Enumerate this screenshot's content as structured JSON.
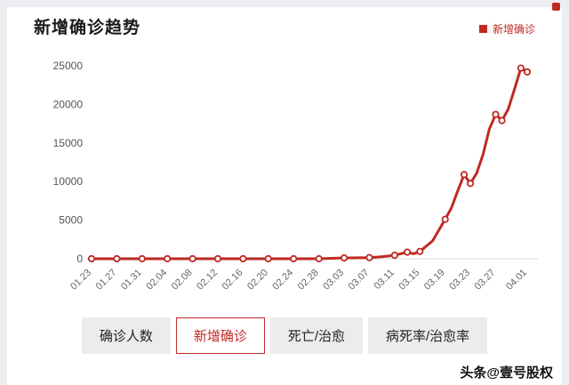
{
  "theme": {
    "accent": "#bf2a23"
  },
  "page": {
    "title": "新增确诊趋势"
  },
  "legend": {
    "label": "新增确诊"
  },
  "tabs": [
    {
      "label": "确诊人数",
      "active": false
    },
    {
      "label": "新增确诊",
      "active": true
    },
    {
      "label": "死亡/治愈",
      "active": false
    },
    {
      "label": "病死率/治愈率",
      "active": false
    }
  ],
  "watermark": "头条@壹号股权",
  "chart_data": {
    "type": "line",
    "title": "新增确诊趋势",
    "series_name": "新增确诊",
    "color": "#bf2a23",
    "grid": false,
    "legend_position": "top-right",
    "ylim": [
      0,
      25000
    ],
    "y_ticks": [
      0,
      5000,
      10000,
      15000,
      20000,
      25000
    ],
    "x_ticks": [
      {
        "label": "01.23",
        "d": 0
      },
      {
        "label": "01.27",
        "d": 4
      },
      {
        "label": "01.31",
        "d": 8
      },
      {
        "label": "02.04",
        "d": 12
      },
      {
        "label": "02.08",
        "d": 16
      },
      {
        "label": "02.12",
        "d": 20
      },
      {
        "label": "02.16",
        "d": 24
      },
      {
        "label": "02.20",
        "d": 28
      },
      {
        "label": "02.24",
        "d": 32
      },
      {
        "label": "02.28",
        "d": 36
      },
      {
        "label": "03.03",
        "d": 40
      },
      {
        "label": "03.07",
        "d": 44
      },
      {
        "label": "03.11",
        "d": 48
      },
      {
        "label": "03.15",
        "d": 52
      },
      {
        "label": "03.19",
        "d": 56
      },
      {
        "label": "03.23",
        "d": 60
      },
      {
        "label": "03.27",
        "d": 64
      },
      {
        "label": "04.01",
        "d": 69
      }
    ],
    "points": [
      [
        0,
        0,
        1
      ],
      [
        4,
        0,
        1
      ],
      [
        8,
        0,
        1
      ],
      [
        12,
        0,
        1
      ],
      [
        16,
        0,
        1
      ],
      [
        20,
        0,
        1
      ],
      [
        24,
        0,
        1
      ],
      [
        28,
        0,
        1
      ],
      [
        32,
        0,
        1
      ],
      [
        36,
        0,
        1
      ],
      [
        40,
        100,
        1
      ],
      [
        44,
        150,
        1
      ],
      [
        46,
        250,
        0
      ],
      [
        48,
        450,
        1
      ],
      [
        50,
        850,
        1
      ],
      [
        51,
        650,
        0
      ],
      [
        52,
        950,
        1
      ],
      [
        54,
        2300,
        0
      ],
      [
        56,
        5100,
        1
      ],
      [
        57,
        6600,
        0
      ],
      [
        58,
        8800,
        0
      ],
      [
        59,
        10900,
        1
      ],
      [
        60,
        9750,
        1
      ],
      [
        61,
        11100,
        0
      ],
      [
        62,
        13500,
        0
      ],
      [
        63,
        16800,
        0
      ],
      [
        64,
        18700,
        1
      ],
      [
        65,
        17900,
        1
      ],
      [
        66,
        19400,
        0
      ],
      [
        67,
        22000,
        0
      ],
      [
        68,
        24700,
        1
      ],
      [
        69,
        24200,
        1
      ]
    ]
  }
}
